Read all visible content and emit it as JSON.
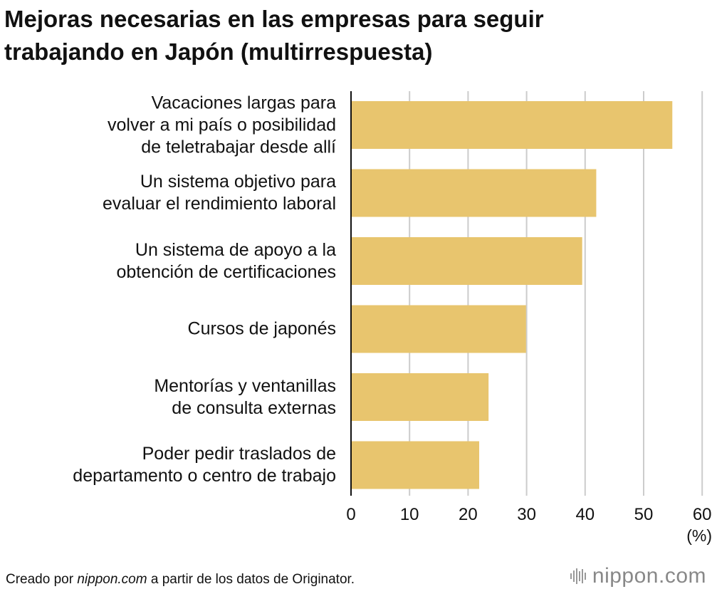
{
  "title_line1": "Mejoras necesarias en las empresas para seguir",
  "title_line2": "trabajando en Japón (multirrespuesta)",
  "colors": {
    "bar": "#E8C56E",
    "grid": "#CCCCCC",
    "axis": "#111111",
    "logo": "#888888"
  },
  "chart_data": {
    "type": "bar",
    "orientation": "horizontal",
    "title": "Mejoras necesarias en las empresas para seguir trabajando en Japón (multirrespuesta)",
    "categories": [
      [
        "Vacaciones largas para",
        "volver a mi país o posibilidad",
        "de teletrabajar desde allí"
      ],
      [
        "Un sistema objetivo para",
        "evaluar el rendimiento laboral"
      ],
      [
        "Un sistema de apoyo a la",
        "obtención de certificaciones"
      ],
      [
        "Cursos de japonés"
      ],
      [
        "Mentorías y ventanillas",
        "de consulta externas"
      ],
      [
        "Poder pedir traslados de",
        "departamento o centro de trabajo"
      ]
    ],
    "values": [
      54.9,
      41.9,
      39.5,
      29.9,
      23.5,
      21.9
    ],
    "xlim": [
      0,
      60
    ],
    "xticks": [
      "0",
      "10",
      "20",
      "30",
      "40",
      "50",
      "60"
    ],
    "xlabel": "(%)",
    "grid": true
  },
  "footer": {
    "prefix": "Creado por ",
    "source": "nippon.com",
    "suffix": " a partir de los datos de Originator."
  },
  "logo": {
    "name": "nippon-logo-icon",
    "text": "nippon.com"
  }
}
